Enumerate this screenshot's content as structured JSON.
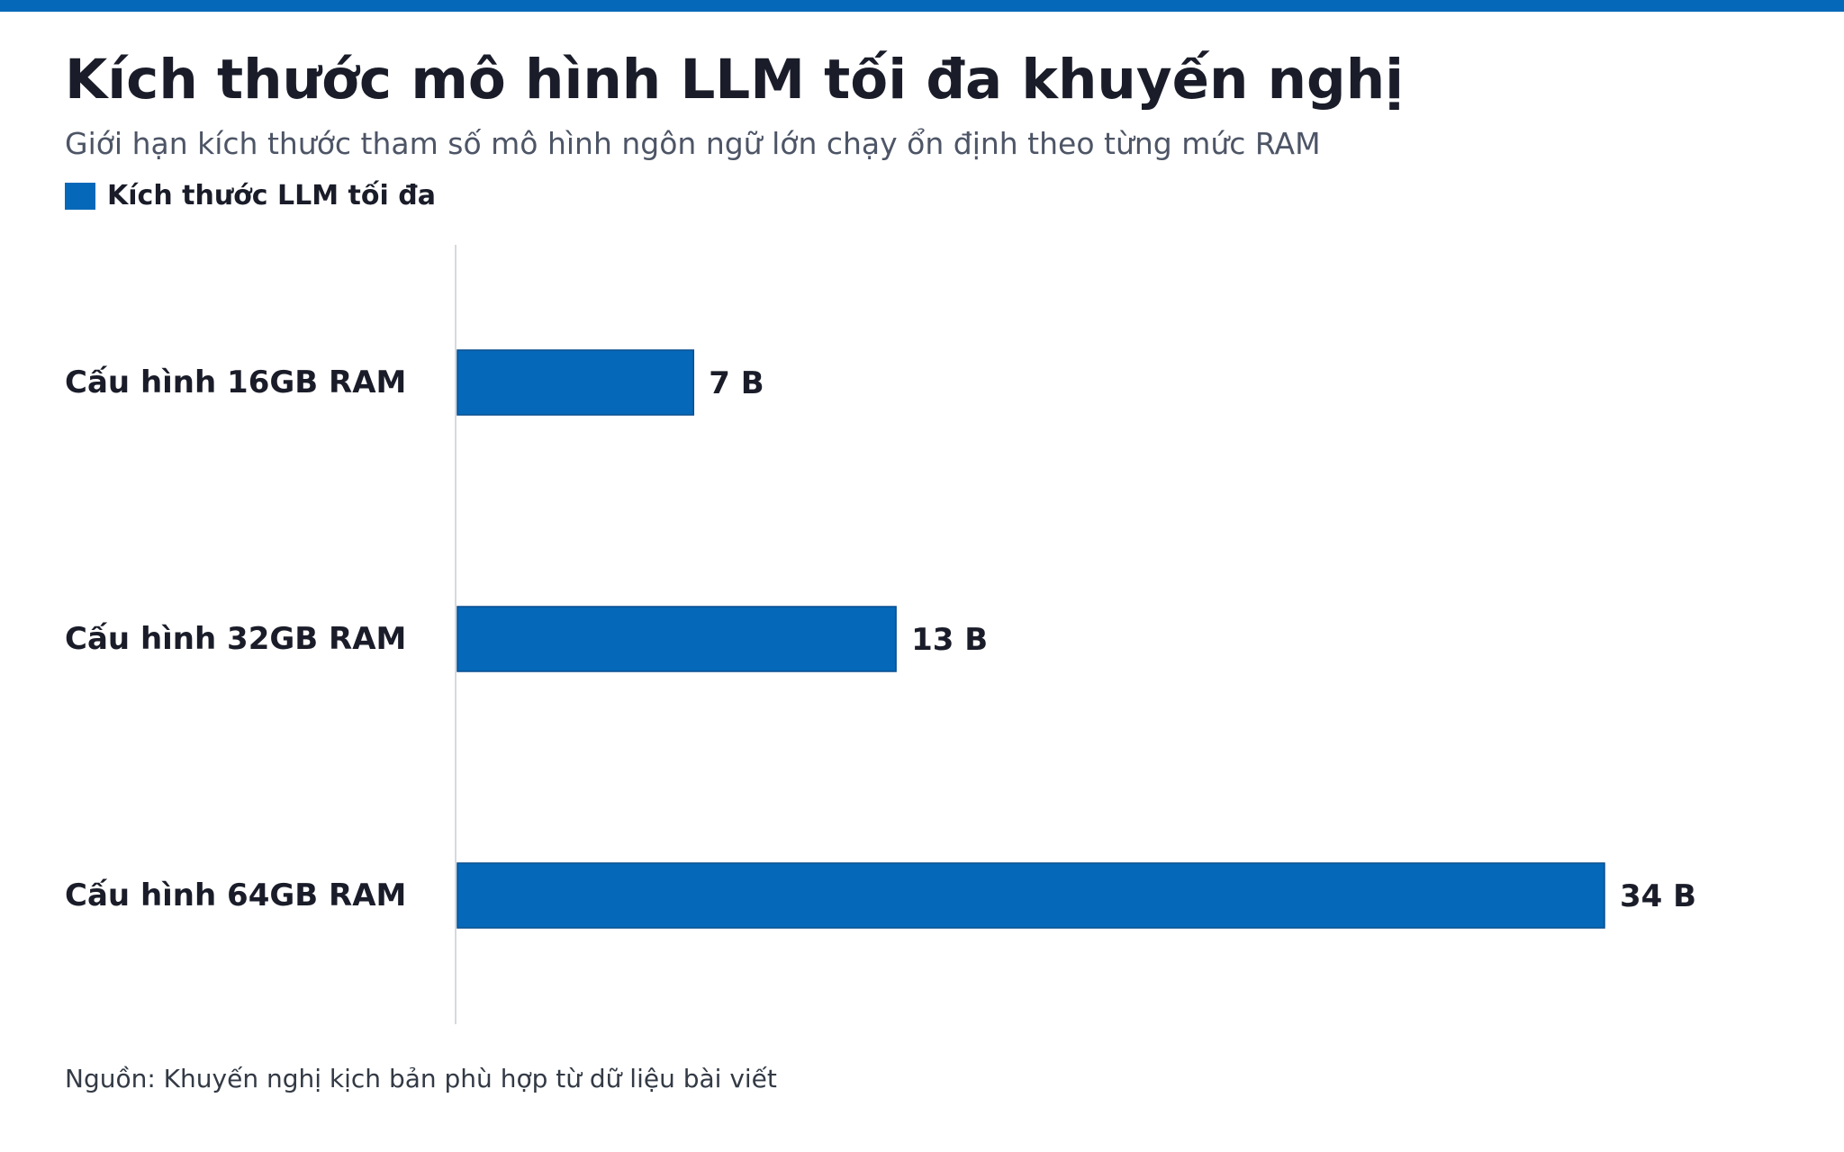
{
  "header": {
    "title": "Kích thước mô hình LLM tối đa khuyến nghị",
    "subtitle": "Giới hạn kích thước tham số mô hình ngôn ngữ lớn chạy ổn định theo từng mức RAM"
  },
  "colors": {
    "accent": "#0568b8",
    "bar": "#0568b8",
    "axis": "#d7d9dd",
    "text": "#1a1d29"
  },
  "chart_data": {
    "type": "bar",
    "orientation": "horizontal",
    "categories": [
      "Cấu hình 16GB RAM",
      "Cấu hình 32GB RAM",
      "Cấu hình 64GB RAM"
    ],
    "series": [
      {
        "name": "Kích thước LLM tối đa",
        "values": [
          7,
          13,
          34
        ]
      }
    ],
    "value_labels": [
      "7 B",
      "13 B",
      "34 B"
    ],
    "legend": "top-left",
    "grid": false
  },
  "footer": {
    "source": "Nguồn: Khuyến nghị kịch bản phù hợp từ dữ liệu bài viết"
  }
}
